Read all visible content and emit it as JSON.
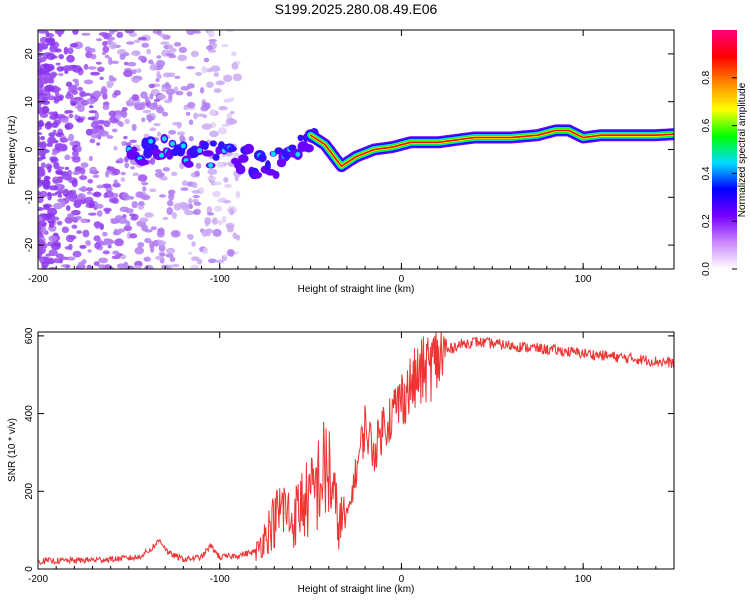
{
  "title": "S199.2025.280.08.49.E06",
  "colors": {
    "snr_line": "#ee3333",
    "dot": "#8833ee",
    "dot_light": "#c9a8f2",
    "axis": "#000000",
    "background": "#ffffff"
  },
  "chart_data": [
    {
      "type": "heatmap",
      "name": "spectrogram",
      "xlabel": "Height of straight line (km)",
      "ylabel": "Frequency (Hz)",
      "xlim": [
        -200,
        150
      ],
      "ylim": [
        -25,
        25
      ],
      "xticks": [
        -200,
        -100,
        0,
        100
      ],
      "xtick_labels": [
        "-200",
        "-100",
        "0",
        "100"
      ],
      "yticks": [
        -20,
        -10,
        0,
        10,
        20
      ],
      "ytick_labels": [
        "-20",
        "-10",
        "0",
        "10",
        "20"
      ],
      "ridge": {
        "x": [
          -150,
          -130,
          -110,
          -90,
          -75,
          -60,
          -50,
          -42,
          -33,
          -25,
          -15,
          -5,
          5,
          20,
          40,
          60,
          75,
          85,
          92,
          100,
          110,
          125,
          140,
          150
        ],
        "y": [
          -0.5,
          0,
          -1,
          -1.5,
          -3.5,
          -2,
          3,
          1,
          -3.5,
          -1.5,
          0,
          0.5,
          1.5,
          1.5,
          2.5,
          2.5,
          3,
          4,
          4,
          2.5,
          3,
          3,
          3,
          3.2
        ]
      },
      "colorbar": {
        "label": "Normalized spectral amplitude",
        "ticks": [
          0.0,
          0.2,
          0.4,
          0.6,
          0.8
        ],
        "tick_labels": [
          "0.0",
          "0.2",
          "0.4",
          "0.6",
          "0.8"
        ],
        "range": [
          0,
          1
        ],
        "colors": [
          "#ffffff",
          "#cc88ff",
          "#7700ff",
          "#0000ff",
          "#00ddff",
          "#00ff00",
          "#ffff00",
          "#ff8800",
          "#ff0000",
          "#ff0080"
        ]
      }
    },
    {
      "type": "line",
      "name": "snr",
      "xlabel": "Height of straight line (km)",
      "ylabel": "SNR (10 * v/v)",
      "xlim": [
        -200,
        150
      ],
      "ylim": [
        0,
        610
      ],
      "xticks": [
        -200,
        -100,
        0,
        100
      ],
      "xtick_labels": [
        "-200",
        "-100",
        "0",
        "100"
      ],
      "yticks": [
        0,
        200,
        400,
        600
      ],
      "ytick_labels": [
        "0",
        "200",
        "400",
        "600"
      ],
      "series": [
        {
          "name": "SNR",
          "x": [
            -200,
            -180,
            -160,
            -145,
            -138,
            -133,
            -128,
            -120,
            -110,
            -105,
            -100,
            -90,
            -80,
            -72,
            -65,
            -60,
            -55,
            -50,
            -45,
            -40,
            -35,
            -30,
            -25,
            -20,
            -15,
            -10,
            -5,
            0,
            5,
            10,
            15,
            20,
            25,
            30,
            40,
            50,
            60,
            70,
            80,
            90,
            100,
            110,
            120,
            130,
            140,
            150
          ],
          "y": [
            20,
            22,
            25,
            30,
            50,
            75,
            40,
            25,
            30,
            60,
            30,
            35,
            45,
            110,
            160,
            120,
            170,
            180,
            230,
            260,
            120,
            130,
            250,
            370,
            300,
            370,
            400,
            440,
            470,
            500,
            520,
            540,
            560,
            575,
            585,
            580,
            575,
            570,
            565,
            560,
            555,
            550,
            545,
            540,
            535,
            530
          ]
        }
      ]
    }
  ]
}
